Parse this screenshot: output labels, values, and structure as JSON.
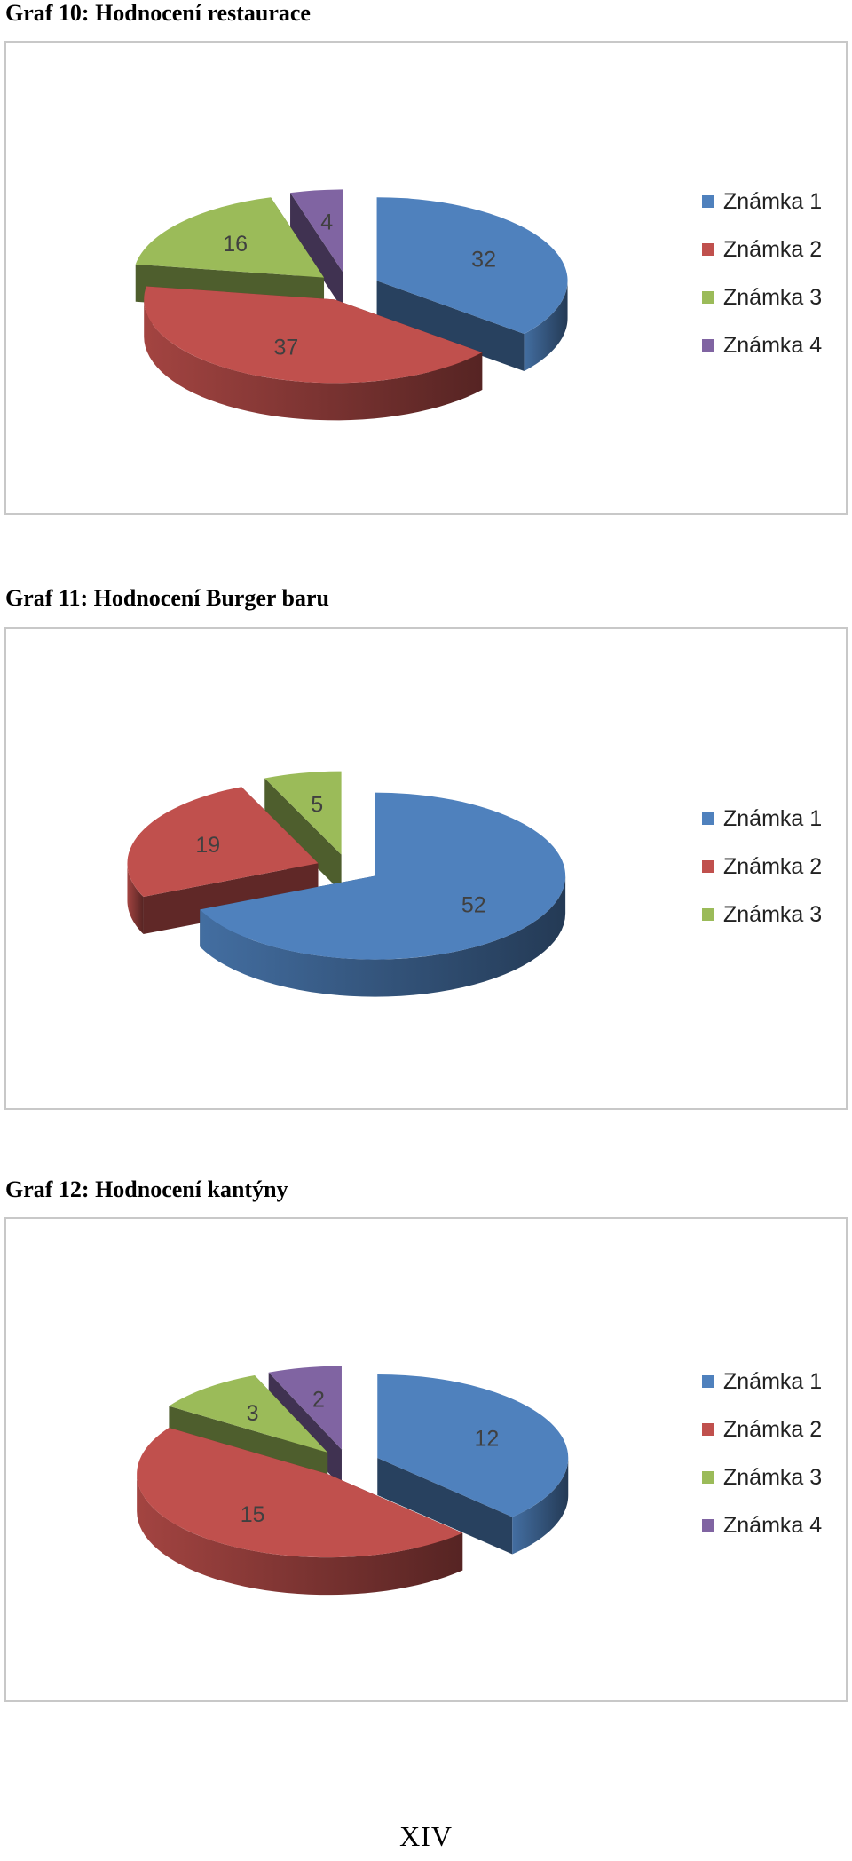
{
  "colors": {
    "znamka1": "#4f81bd",
    "znamka2": "#c0504d",
    "znamka3": "#9bbb59",
    "znamka4": "#8064a2"
  },
  "page_number": "XIV",
  "chart_data": [
    {
      "type": "pie",
      "title": "Graf 10: Hodnocení restaurace",
      "categories": [
        "Známka 1",
        "Známka 2",
        "Známka 3",
        "Známka 4"
      ],
      "values": [
        32,
        37,
        16,
        4
      ],
      "legend_position": "right",
      "style": "3d-exploded"
    },
    {
      "type": "pie",
      "title": "Graf 11: Hodnocení Burger baru",
      "categories": [
        "Známka 1",
        "Známka 2",
        "Známka 3"
      ],
      "values": [
        52,
        19,
        5
      ],
      "legend_position": "right",
      "style": "3d-exploded"
    },
    {
      "type": "pie",
      "title": "Graf 12: Hodnocení kantýny",
      "categories": [
        "Známka 1",
        "Známka 2",
        "Známka 3",
        "Známka 4"
      ],
      "values": [
        12,
        15,
        3,
        2
      ],
      "legend_position": "right",
      "style": "3d-exploded"
    }
  ]
}
